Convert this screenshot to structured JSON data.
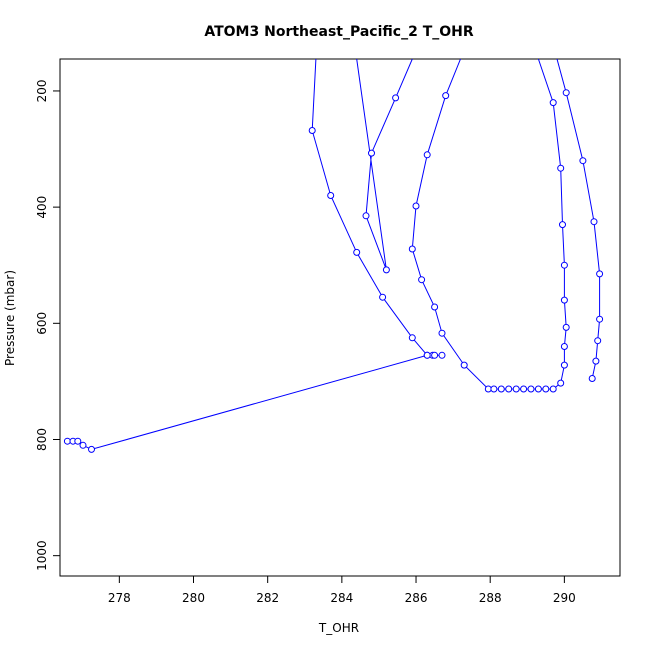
{
  "chart_data": {
    "type": "scatter",
    "title": "ATOM3 Northeast_Pacific_2 T_OHR",
    "xlabel": "T_OHR",
    "ylabel": "Pressure (mbar)",
    "xlim": [
      276.4,
      291.5
    ],
    "ylim": [
      1035,
      145
    ],
    "y_reversed": true,
    "x_ticks": [
      278,
      280,
      282,
      284,
      286,
      288,
      290
    ],
    "y_ticks": [
      200,
      400,
      600,
      800,
      1000
    ],
    "grid": false,
    "series_color": "#0000ff",
    "series": [
      {
        "points": [
          [
            276.6,
            803
          ],
          [
            276.75,
            803
          ],
          [
            276.88,
            803
          ],
          [
            277.02,
            810
          ],
          [
            277.25,
            817
          ],
          [
            286.3,
            655
          ],
          [
            286.45,
            655
          ],
          [
            286.5,
            655
          ],
          [
            286.7,
            655
          ]
        ]
      },
      {
        "points": [
          [
            283.3,
            145
          ],
          [
            283.2,
            268
          ],
          [
            283.7,
            380
          ],
          [
            284.4,
            478
          ],
          [
            285.1,
            555
          ],
          [
            285.9,
            625
          ],
          [
            286.3,
            655
          ]
        ]
      },
      {
        "points": [
          [
            284.4,
            145
          ],
          [
            285.2,
            508
          ],
          [
            284.65,
            415
          ],
          [
            284.8,
            307
          ],
          [
            285.45,
            212
          ],
          [
            285.9,
            145
          ]
        ]
      },
      {
        "points": [
          [
            287.2,
            145
          ],
          [
            286.8,
            208
          ],
          [
            286.3,
            310
          ],
          [
            286.0,
            398
          ],
          [
            285.9,
            472
          ],
          [
            286.15,
            525
          ],
          [
            286.5,
            572
          ],
          [
            286.7,
            617
          ],
          [
            287.3,
            672
          ],
          [
            287.95,
            713
          ],
          [
            288.1,
            713
          ],
          [
            288.3,
            713
          ],
          [
            288.5,
            713
          ],
          [
            288.7,
            713
          ],
          [
            288.9,
            713
          ],
          [
            289.1,
            713
          ],
          [
            289.3,
            713
          ],
          [
            289.5,
            713
          ],
          [
            289.7,
            713
          ],
          [
            289.9,
            703
          ],
          [
            290.0,
            672
          ],
          [
            290.0,
            640
          ],
          [
            290.05,
            607
          ],
          [
            290.0,
            560
          ],
          [
            290.0,
            500
          ],
          [
            289.95,
            430
          ],
          [
            289.9,
            333
          ],
          [
            289.7,
            220
          ],
          [
            289.3,
            145
          ]
        ]
      },
      {
        "points": [
          [
            289.8,
            145
          ],
          [
            290.05,
            203
          ],
          [
            290.5,
            320
          ],
          [
            290.8,
            425
          ],
          [
            290.95,
            515
          ],
          [
            290.95,
            593
          ],
          [
            290.9,
            630
          ],
          [
            290.85,
            665
          ],
          [
            290.75,
            695
          ]
        ]
      }
    ]
  }
}
